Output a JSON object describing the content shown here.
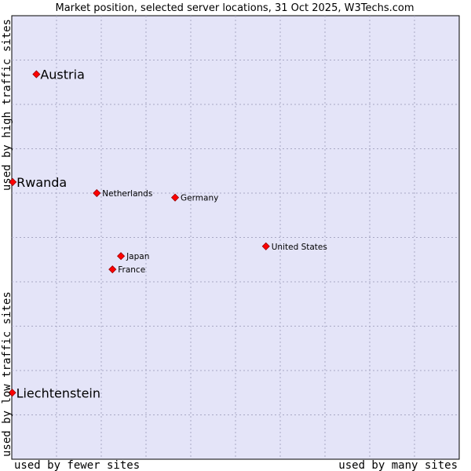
{
  "chart_data": {
    "type": "scatter",
    "title": "Market position, selected server locations, 31 Oct 2025, W3Techs.com",
    "xlabel_left": "used by fewer sites",
    "xlabel_right": "used by many sites",
    "ylabel_bottom": "used by low traffic sites",
    "ylabel_top": "used by high traffic sites",
    "xlim": [
      0,
      100
    ],
    "ylim": [
      0,
      100
    ],
    "grid": true,
    "colors": {
      "plot_background": "#e4e4f8",
      "marker": "#ff0000",
      "marker_edge": "#990000"
    },
    "points": [
      {
        "name": "Austria",
        "x": 5.5,
        "y": 86.8,
        "emphasis": true
      },
      {
        "name": "Rwanda",
        "x": 0.2,
        "y": 62.5,
        "emphasis": true
      },
      {
        "name": "Liechtenstein",
        "x": 0.1,
        "y": 15.0,
        "emphasis": true
      },
      {
        "name": "Netherlands",
        "x": 19.0,
        "y": 60.0,
        "emphasis": false
      },
      {
        "name": "Germany",
        "x": 36.5,
        "y": 59.0,
        "emphasis": false
      },
      {
        "name": "United States",
        "x": 56.8,
        "y": 48.0,
        "emphasis": false
      },
      {
        "name": "Japan",
        "x": 24.4,
        "y": 45.8,
        "emphasis": false
      },
      {
        "name": "France",
        "x": 22.5,
        "y": 42.8,
        "emphasis": false
      }
    ]
  }
}
